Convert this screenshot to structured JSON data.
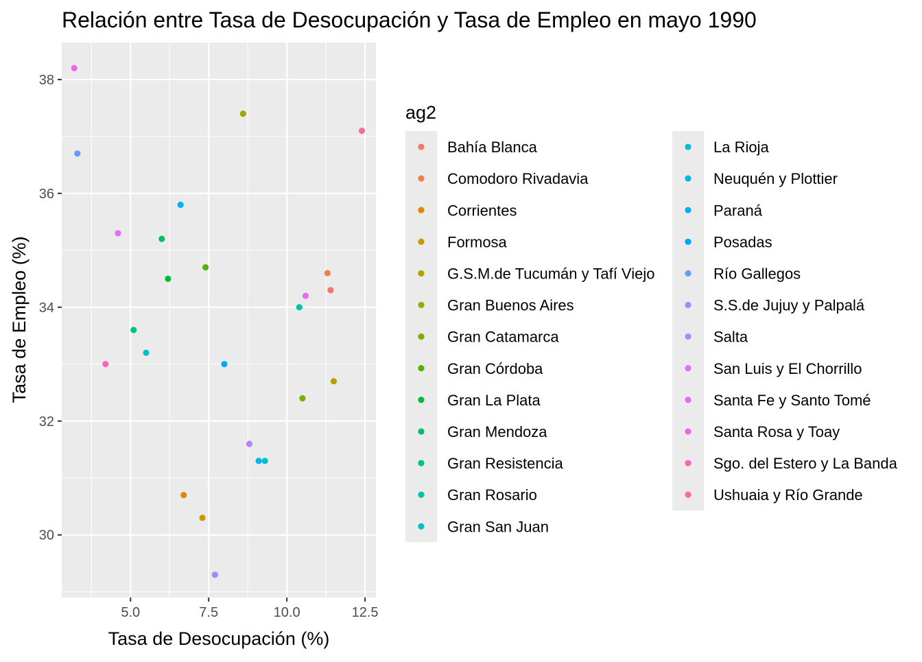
{
  "chart_data": {
    "type": "scatter",
    "title": "Relación entre Tasa de Desocupación y Tasa de Empleo en mayo 1990",
    "xlabel": "Tasa de Desocupación (%)",
    "ylabel": "Tasa de Empleo (%)",
    "xlim": [
      2.8,
      12.85
    ],
    "ylim": [
      28.9,
      38.65
    ],
    "x_ticks": [
      5.0,
      7.5,
      10.0,
      12.5
    ],
    "x_tick_labels": [
      "5.0",
      "7.5",
      "10.0",
      "12.5"
    ],
    "y_ticks": [
      30,
      32,
      34,
      36,
      38
    ],
    "y_tick_labels": [
      "30",
      "32",
      "34",
      "36",
      "38"
    ],
    "grid": true,
    "legend": {
      "title": "ag2",
      "placement": "right",
      "columns": 2
    },
    "series": [
      {
        "name": "Bahía Blanca",
        "color": "#F8766D",
        "x": [
          11.4
        ],
        "y": [
          34.3
        ]
      },
      {
        "name": "Comodoro Rivadavia",
        "color": "#F07F4E",
        "x": [
          11.3
        ],
        "y": [
          34.6
        ]
      },
      {
        "name": "Corrientes",
        "color": "#E08800",
        "x": [
          6.7
        ],
        "y": [
          30.7
        ]
      },
      {
        "name": "Formosa",
        "color": "#CB9600",
        "x": [
          7.3
        ],
        "y": [
          30.3
        ]
      },
      {
        "name": "G.S.M.de Tucumán y Tafí Viejo",
        "color": "#B79F00",
        "x": [
          11.5
        ],
        "y": [
          32.7
        ]
      },
      {
        "name": "Gran Buenos Aires",
        "color": "#9DA700",
        "x": [
          8.6
        ],
        "y": [
          37.4
        ]
      },
      {
        "name": "Gran Catamarca",
        "color": "#7CAE00",
        "x": [
          10.5
        ],
        "y": [
          32.4
        ]
      },
      {
        "name": "Gran Córdoba",
        "color": "#52B400",
        "x": [
          7.4
        ],
        "y": [
          34.7
        ]
      },
      {
        "name": "Gran La Plata",
        "color": "#00BA38",
        "x": [
          6.2
        ],
        "y": [
          34.5
        ]
      },
      {
        "name": "Gran Mendoza",
        "color": "#00BE67",
        "x": [
          6.0
        ],
        "y": [
          35.2
        ]
      },
      {
        "name": "Gran Resistencia",
        "color": "#00C08B",
        "x": [
          5.1
        ],
        "y": [
          33.6
        ]
      },
      {
        "name": "Gran Rosario",
        "color": "#00C1AA",
        "x": [
          10.4
        ],
        "y": [
          34.0
        ]
      },
      {
        "name": "Gran San Juan",
        "color": "#00C0C6",
        "x": [
          5.5
        ],
        "y": [
          33.2
        ]
      },
      {
        "name": "La Rioja",
        "color": "#00BCD8",
        "x": [
          9.3
        ],
        "y": [
          31.3
        ]
      },
      {
        "name": "Neuquén y Plottier",
        "color": "#00B5EA",
        "x": [
          9.1
        ],
        "y": [
          31.3
        ]
      },
      {
        "name": "Paraná",
        "color": "#00B0F6",
        "x": [
          6.6
        ],
        "y": [
          35.8
        ]
      },
      {
        "name": "Posadas",
        "color": "#00A5FF",
        "x": [
          8.0
        ],
        "y": [
          33.0
        ]
      },
      {
        "name": "Río Gallegos",
        "color": "#619CFF",
        "x": [
          3.3
        ],
        "y": [
          36.7
        ]
      },
      {
        "name": "S.S.de Jujuy y Palpalá",
        "color": "#9590FF",
        "x": [
          7.7
        ],
        "y": [
          29.3
        ]
      },
      {
        "name": "Salta",
        "color": "#B983FF",
        "x": [
          8.8
        ],
        "y": [
          31.6
        ]
      },
      {
        "name": "San Luis y El Chorrillo",
        "color": "#DB72FB",
        "x": [
          4.6
        ],
        "y": [
          35.3
        ]
      },
      {
        "name": "Santa Fe y Santo Tomé",
        "color": "#E76BF3",
        "x": [
          10.6
        ],
        "y": [
          34.2
        ]
      },
      {
        "name": "Santa Rosa y Toay",
        "color": "#F564E3",
        "x": [
          3.2
        ],
        "y": [
          38.2
        ]
      },
      {
        "name": "Sgo. del Estero y La Banda",
        "color": "#FF62BC",
        "x": [
          4.2
        ],
        "y": [
          33.0
        ]
      },
      {
        "name": "Ushuaia y Río Grande",
        "color": "#FF6C91",
        "x": [
          12.4
        ],
        "y": [
          37.1
        ]
      }
    ]
  }
}
